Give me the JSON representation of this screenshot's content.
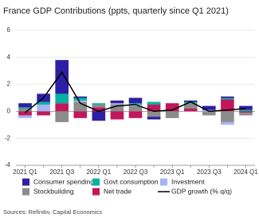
{
  "chart_data": {
    "type": "bar",
    "title": "France GDP Contributions (ppts, quarterly since Q1 2021)",
    "source": "Sources: Refinitiv, Capital Economics",
    "categories": [
      "2021 Q1",
      null,
      "2021 Q3",
      null,
      "2022 Q1",
      null,
      "2022 Q3",
      null,
      "2023 Q1",
      null,
      "2023 Q3",
      null,
      "2024 Q1"
    ],
    "series": [
      {
        "name": "Consumer spending",
        "color": "#2d1fa3",
        "values": [
          0.3,
          0.6,
          2.5,
          0.1,
          -0.7,
          0.2,
          0.4,
          -0.2,
          0.0,
          0.1,
          0.3,
          0.1,
          0.3
        ]
      },
      {
        "name": "Govt consumption",
        "color": "#00b3a0",
        "values": [
          0.1,
          0.2,
          0.7,
          0.2,
          0.1,
          0.0,
          0.1,
          0.2,
          0.0,
          0.1,
          0.0,
          0.1,
          0.1
        ]
      },
      {
        "name": "Investment",
        "color": "#a9b4f2",
        "values": [
          -0.2,
          0.5,
          0.0,
          0.1,
          0.0,
          0.1,
          0.1,
          0.0,
          0.0,
          0.0,
          0.1,
          -0.2,
          0.0
        ]
      },
      {
        "name": "Stockbuilding",
        "color": "#8c8c8c",
        "values": [
          0.2,
          0.0,
          -0.8,
          0.7,
          0.2,
          0.5,
          0.4,
          -0.4,
          -0.5,
          0.4,
          -0.3,
          -0.8,
          -0.2
        ]
      },
      {
        "name": "Net trade",
        "color": "#c2185b",
        "values": [
          -0.3,
          -0.3,
          0.6,
          -0.5,
          0.3,
          -0.6,
          -0.5,
          0.5,
          0.6,
          0.2,
          0.0,
          0.9,
          -0.1
        ]
      }
    ],
    "line": {
      "name": "GDP growth (% q/q)",
      "color": "#000000",
      "values": [
        -0.1,
        1.0,
        2.9,
        0.6,
        0.0,
        0.4,
        0.5,
        0.0,
        0.1,
        0.7,
        0.0,
        0.1,
        0.2
      ]
    },
    "ylim": [
      -4,
      6
    ],
    "yticks": [
      -4,
      -2,
      0,
      2,
      4,
      6
    ],
    "grid": true
  }
}
